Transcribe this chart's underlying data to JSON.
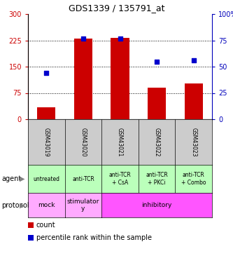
{
  "title": "GDS1339 / 135791_at",
  "samples": [
    "GSM43019",
    "GSM43020",
    "GSM43021",
    "GSM43022",
    "GSM43023"
  ],
  "counts": [
    35,
    230,
    233,
    90,
    103
  ],
  "percentile_ranks": [
    44,
    77,
    77,
    55,
    56
  ],
  "ylim_left": [
    0,
    300
  ],
  "ylim_right": [
    0,
    100
  ],
  "yticks_left": [
    0,
    75,
    150,
    225,
    300
  ],
  "yticks_right": [
    0,
    25,
    50,
    75,
    100
  ],
  "bar_color": "#cc0000",
  "dot_color": "#0000cc",
  "agent_labels": [
    "untreated",
    "anti-TCR",
    "anti-TCR\n+ CsA",
    "anti-TCR\n+ PKCi",
    "anti-TCR\n+ Combo"
  ],
  "protocol_spans": [
    {
      "label": "mock",
      "start": 0,
      "end": 1,
      "color": "#ffaaff"
    },
    {
      "label": "stimulator\ny",
      "start": 1,
      "end": 2,
      "color": "#ffaaff"
    },
    {
      "label": "inhibitory",
      "start": 2,
      "end": 5,
      "color": "#ff55ff"
    }
  ],
  "sample_bg_color": "#cccccc",
  "agent_bg_color": "#bbffbb",
  "legend_count_color": "#cc0000",
  "legend_pct_color": "#0000cc",
  "background_color": "#ffffff",
  "left_axis_color": "#cc0000",
  "right_axis_color": "#0000bb"
}
